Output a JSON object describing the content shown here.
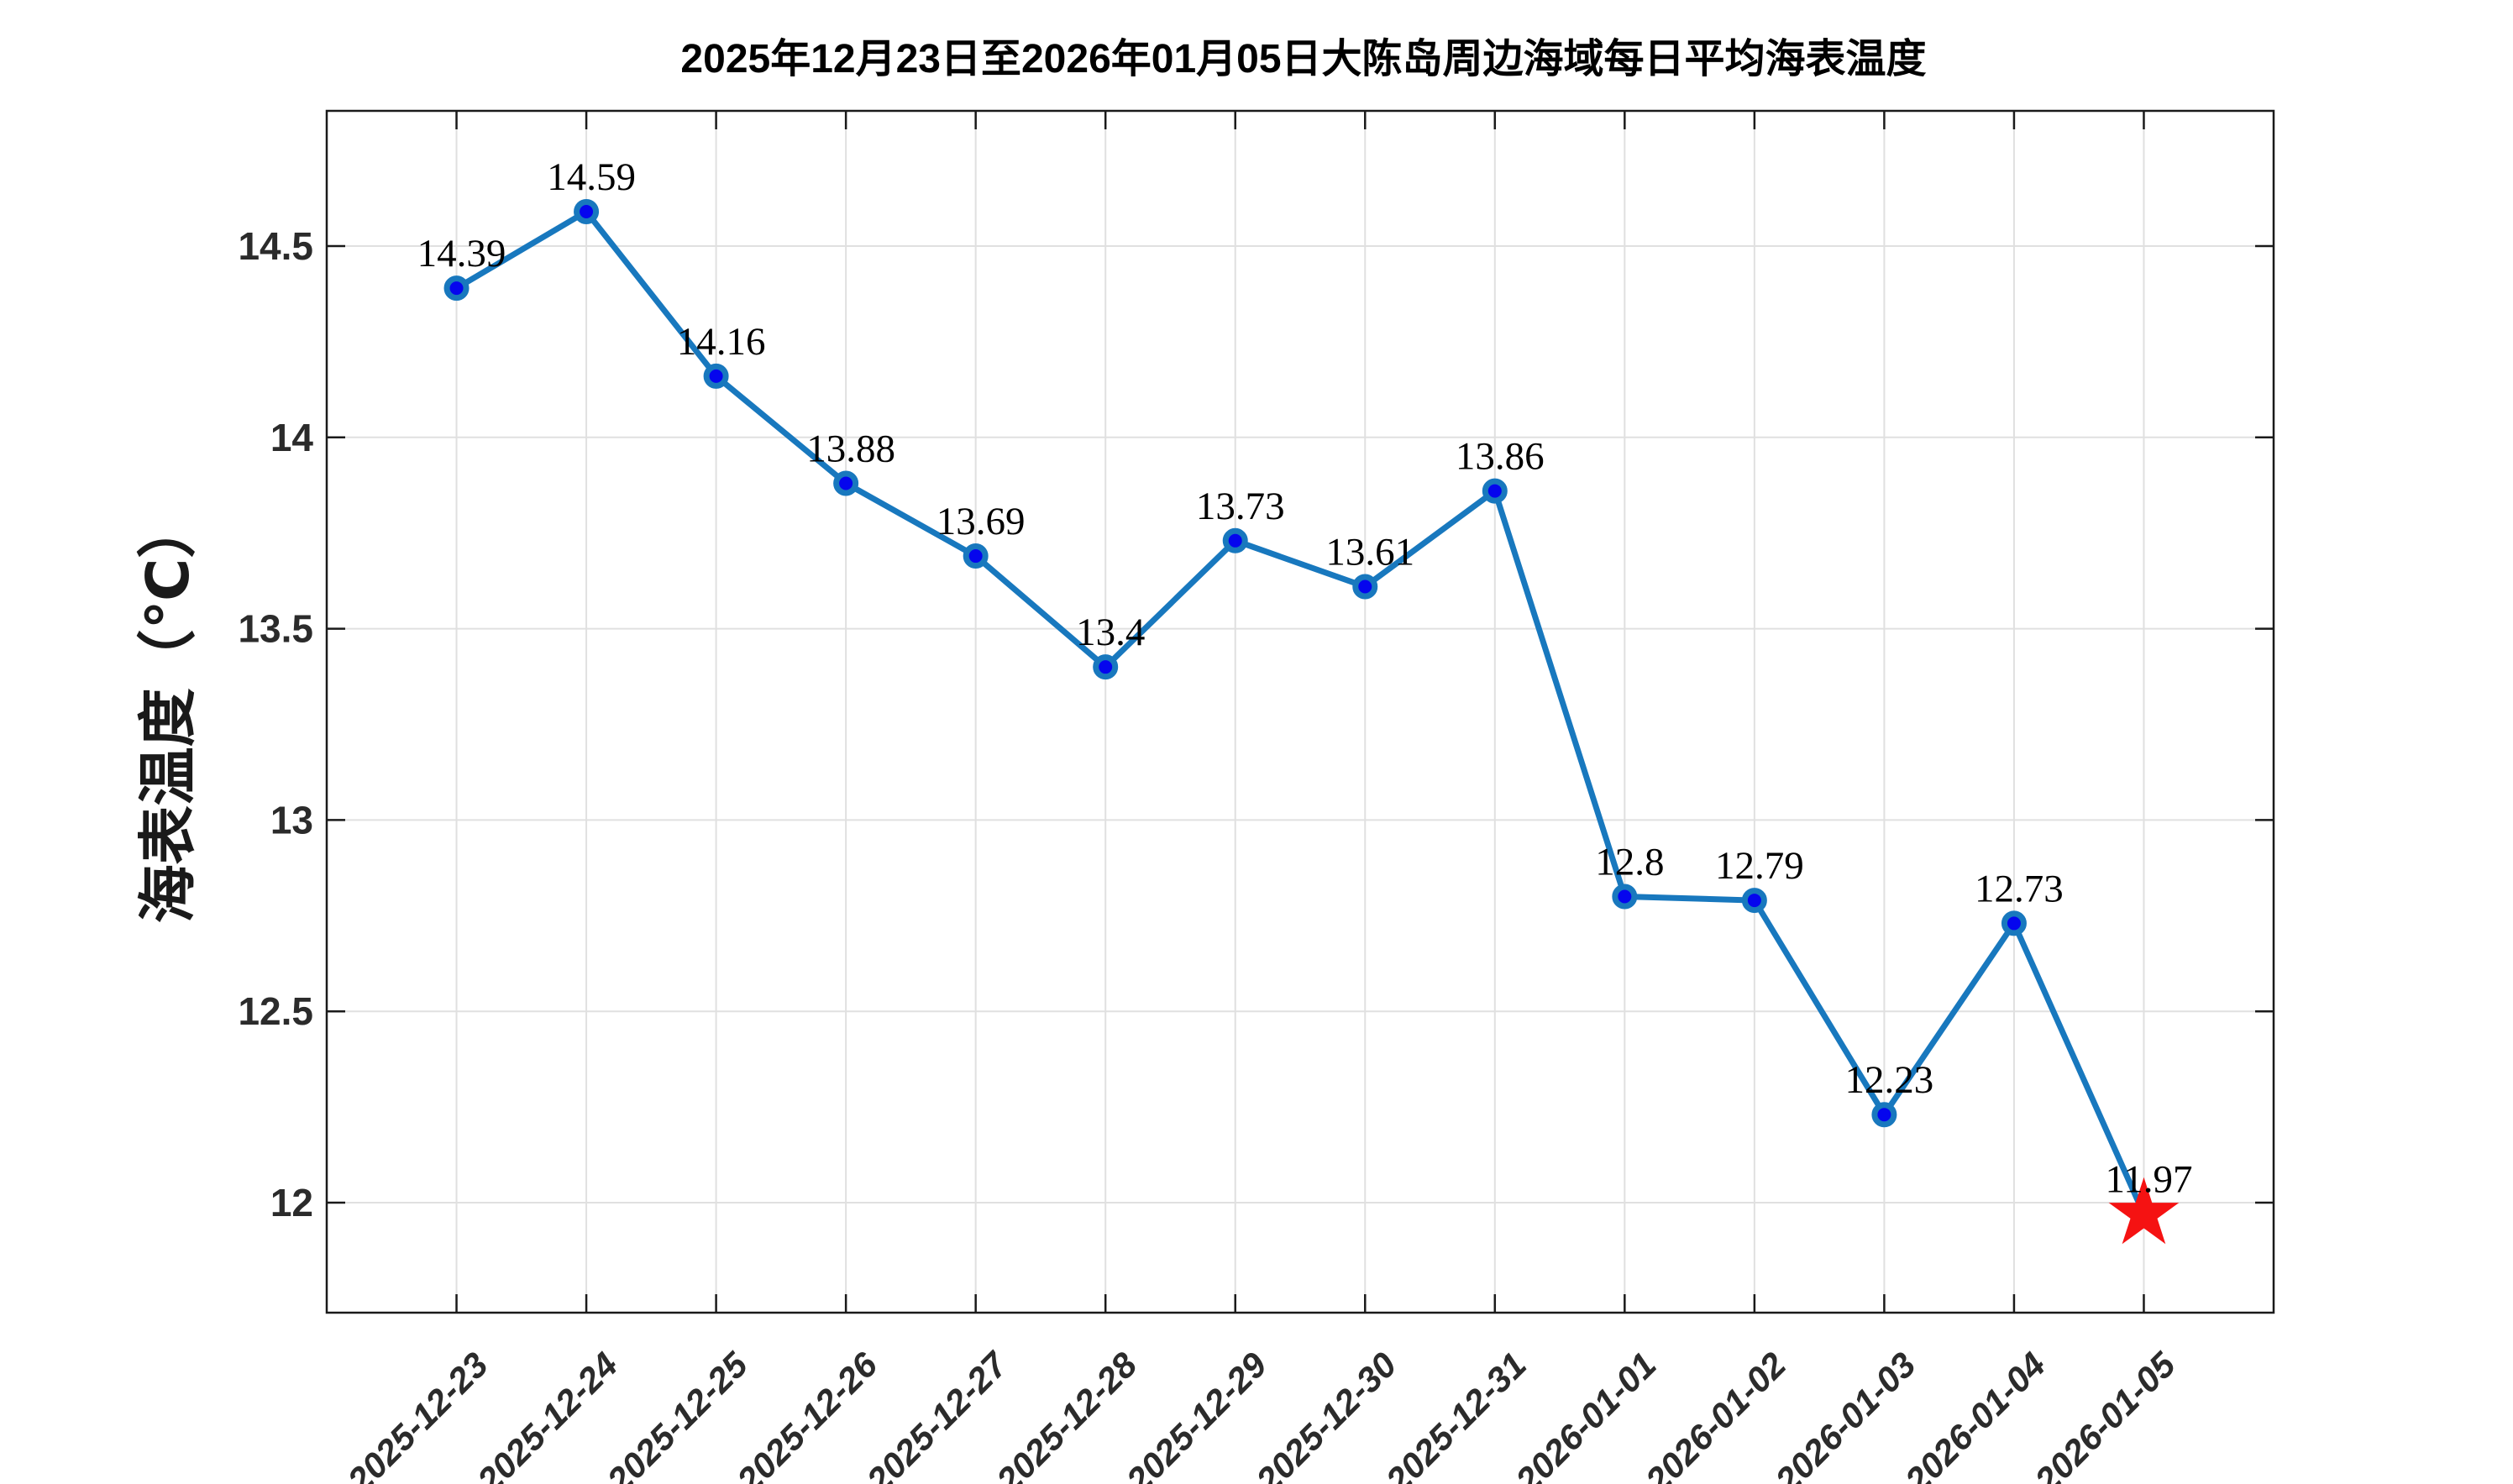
{
  "figure": {
    "background": "#ffffff"
  },
  "chart_data": {
    "type": "line",
    "title": "2025年12月23日至2026年01月05日大陈岛周边海域每日平均海表温度",
    "xlabel": "",
    "ylabel": "海表温度（℃）",
    "categories": [
      "2025-12-23",
      "2025-12-24",
      "2025-12-25",
      "2025-12-26",
      "2025-12-27",
      "2025-12-28",
      "2025-12-29",
      "2025-12-30",
      "2025-12-31",
      "2026-01-01",
      "2026-01-02",
      "2026-01-03",
      "2026-01-04",
      "2026-01-05"
    ],
    "series": [
      {
        "name": "每日平均海表温度",
        "values": [
          14.39,
          14.59,
          14.16,
          13.88,
          13.69,
          13.4,
          13.73,
          13.61,
          13.86,
          12.8,
          12.79,
          12.23,
          12.73,
          11.97
        ]
      }
    ],
    "point_labels": [
      "14.39",
      "14.59",
      "14.16",
      "13.88",
      "13.69",
      "13.4",
      "13.73",
      "13.61",
      "13.86",
      "12.8",
      "12.79",
      "12.23",
      "12.73",
      "11.97"
    ],
    "yticks": [
      12,
      12.5,
      13,
      13.5,
      14,
      14.5
    ],
    "ytick_labels": [
      "12",
      "12.5",
      "13",
      "13.5",
      "14",
      "14.5"
    ],
    "ylim": [
      11.71,
      14.85
    ],
    "grid": true,
    "legend_position": "none",
    "x_tick_rotation_deg": 45,
    "highlight_point": {
      "category": "2026-01-05",
      "value": 11.97,
      "marker": "star",
      "color": "#f51212"
    },
    "colors": {
      "line": "#1878be",
      "marker_face": "#0505ee",
      "marker_edge": "#1878be",
      "star": "#f51212",
      "grid": "#e0e0e0",
      "axis": "#1a1a1a",
      "tick_label": "#2b2b2b",
      "data_label": "#000000",
      "title": "#000000"
    }
  }
}
